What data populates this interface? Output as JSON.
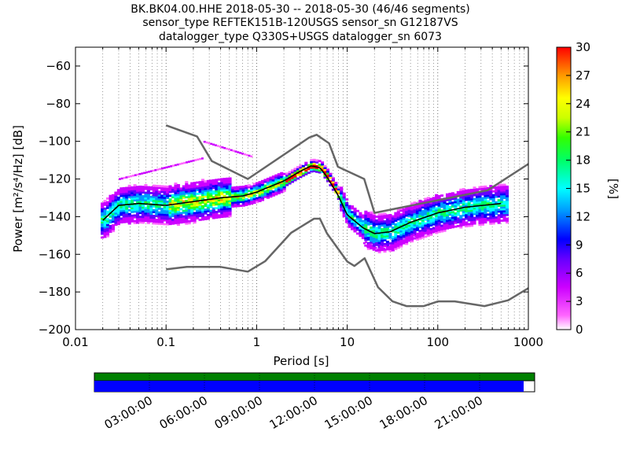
{
  "title_lines": [
    "BK.BK04.00.HHE   2018-05-30 -- 2018-05-30  (46/46 segments)",
    "sensor_type REFTEK151B-120USGS sensor_sn G12187VS",
    "datalogger_type Q330S+USGS datalogger_sn 6073"
  ],
  "chart_data": {
    "type": "heatmap",
    "xlabel": "Period [s]",
    "ylabel": "Power [m²/s⁴/Hz] [dB]",
    "xscale": "log",
    "xlim": [
      0.01,
      1000
    ],
    "ylim": [
      -200,
      -50
    ],
    "xticks": [
      0.01,
      0.1,
      1,
      10,
      100,
      1000
    ],
    "xtick_labels": [
      "0.01",
      "0.1",
      "1",
      "10",
      "100",
      "1000"
    ],
    "yticks": [
      -60,
      -80,
      -100,
      -120,
      -140,
      -160,
      -180,
      -200
    ],
    "ytick_labels": [
      "−60",
      "−80",
      "−100",
      "−120",
      "−140",
      "−160",
      "−180",
      "−200"
    ],
    "grid": "dotted vertical",
    "colorbar": {
      "label": "[%]",
      "range": [
        0,
        30
      ],
      "ticks": [
        0,
        3,
        6,
        9,
        12,
        15,
        18,
        21,
        24,
        27,
        30
      ],
      "colormap": "pqlx"
    },
    "noise_models": {
      "high": {
        "period": [
          0.1,
          0.22,
          0.32,
          0.8,
          3.8,
          4.6,
          6.3,
          7.9,
          15.4,
          20,
          354.8,
          1000
        ],
        "power": [
          -91.5,
          -97.4,
          -110.5,
          -120,
          -98,
          -96.5,
          -101,
          -113.5,
          -120,
          -138,
          -126,
          -112
        ]
      },
      "low": {
        "period": [
          0.1,
          0.17,
          0.4,
          0.8,
          1.24,
          2.4,
          4.3,
          5,
          6,
          10,
          12,
          15.6,
          21.9,
          31.6,
          45,
          70,
          101,
          154,
          328,
          600,
          1000
        ],
        "power": [
          -168,
          -166.7,
          -166.7,
          -169.2,
          -163.7,
          -148.6,
          -141.1,
          -141.1,
          -149,
          -163.8,
          -166.2,
          -162.1,
          -177.5,
          -185,
          -187.5,
          -187.5,
          -185,
          -185,
          -187.5,
          -184.4,
          -178
        ]
      }
    },
    "mode": {
      "period": [
        0.02,
        0.03,
        0.05,
        0.1,
        0.2,
        0.4,
        0.7,
        1,
        2,
        3,
        4,
        5,
        6,
        8,
        10,
        15,
        20,
        30,
        50,
        100,
        200,
        500
      ],
      "power": [
        -142,
        -134,
        -133,
        -134,
        -132,
        -130,
        -129,
        -127,
        -121,
        -116,
        -113,
        -114,
        -119,
        -129,
        -139,
        -146,
        -149,
        -148,
        -143,
        -138,
        -135,
        -133
      ]
    }
  },
  "timeline": {
    "ticks": [
      "03:00:00",
      "06:00:00",
      "09:00:00",
      "12:00:00",
      "15:00:00",
      "18:00:00",
      "21:00:00"
    ],
    "bar_colors": {
      "data": "#008000",
      "coverage": "#0000ff"
    },
    "coverage_fraction": 0.975
  },
  "colors": {
    "noise_model": "#666666",
    "mode": "#000000"
  }
}
